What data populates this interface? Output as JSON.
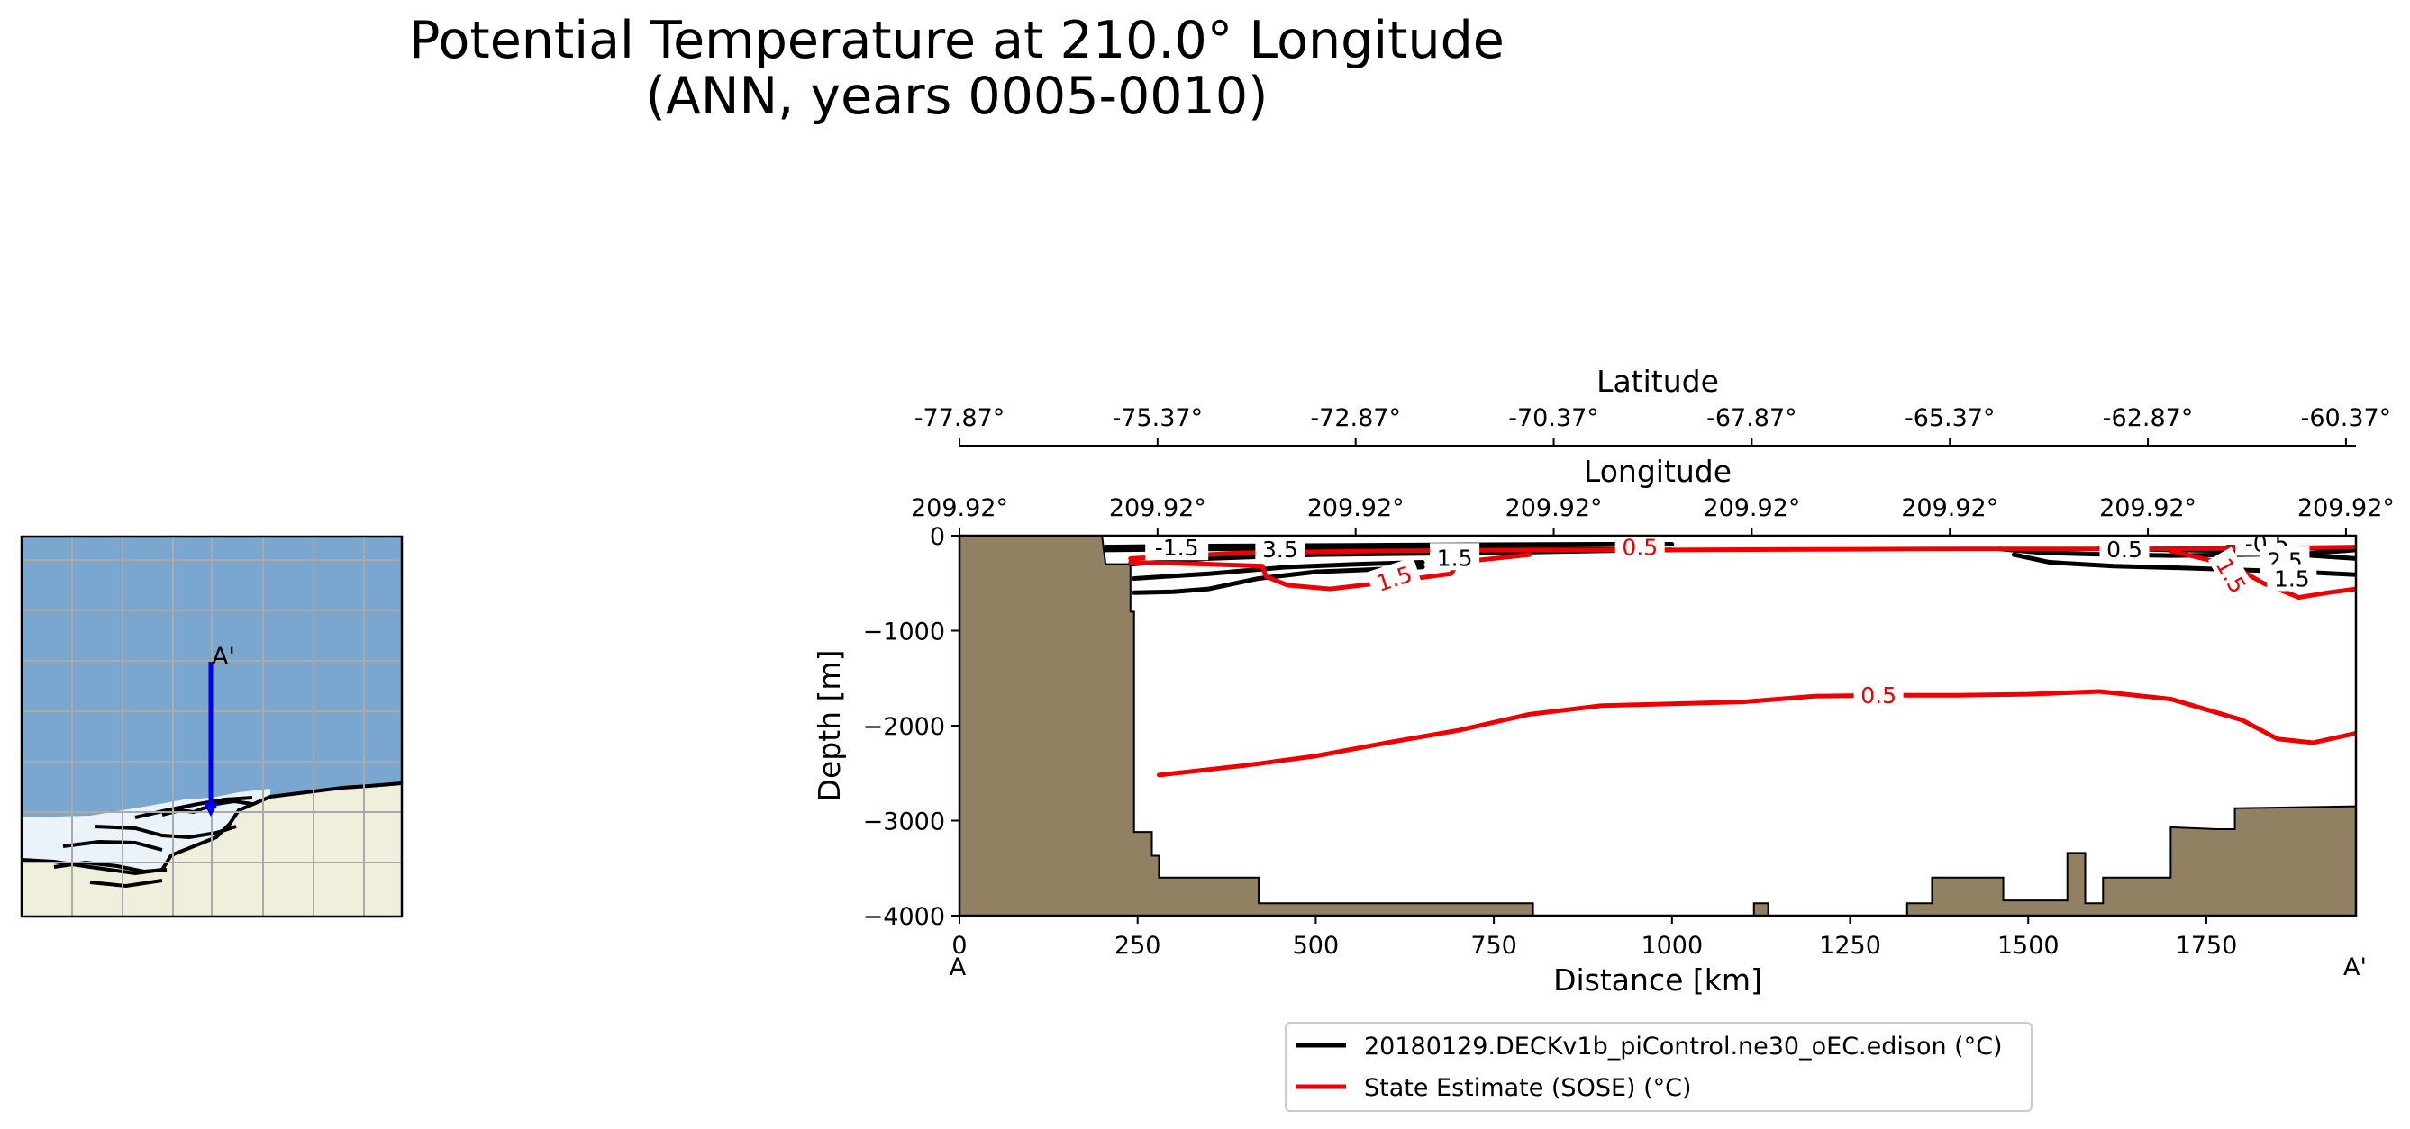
{
  "figure": {
    "title_line1": "Potential Temperature at 210.0° Longitude",
    "title_line2": "(ANN, years 0005-0010)"
  },
  "inset_map": {
    "end_label": "A'",
    "colors": {
      "ocean": "#79a7cf",
      "land": "#efefdb",
      "ice": "#eaf2fa",
      "grid": "#aaaaaa",
      "transect": "#0000ee"
    }
  },
  "chart_data": {
    "type": "contour",
    "xlabel": "Distance [km]",
    "ylabel": "Depth [m]",
    "xlim": [
      0,
      1960
    ],
    "ylim": [
      -4000,
      0
    ],
    "x_ticks": [
      0,
      250,
      500,
      750,
      1000,
      1250,
      1500,
      1750
    ],
    "y_ticks": [
      0,
      -1000,
      -2000,
      -3000,
      -4000
    ],
    "x_tick_labels": [
      "0",
      "250",
      "500",
      "750",
      "1000",
      "1250",
      "1500",
      "1750"
    ],
    "y_tick_labels": [
      "0",
      "−1000",
      "−2000",
      "−3000",
      "−4000"
    ],
    "start_label": "A",
    "end_label": "A'",
    "latitude_axis": {
      "label": "Latitude",
      "ticks": [
        "-77.87°",
        "-75.37°",
        "-72.87°",
        "-70.37°",
        "-67.87°",
        "-65.37°",
        "-62.87°",
        "-60.37°"
      ]
    },
    "longitude_axis": {
      "label": "Longitude",
      "ticks": [
        "209.92°",
        "209.92°",
        "209.92°",
        "209.92°",
        "209.92°",
        "209.92°",
        "209.92°",
        "209.92°"
      ]
    },
    "secondary_tick_positions_km": [
      0,
      278,
      556,
      834,
      1112,
      1390,
      1668,
      1946
    ],
    "colors": {
      "model": "#000000",
      "obs": "#ee0000",
      "bathymetry": "#918163"
    },
    "bathymetry": [
      [
        0,
        0
      ],
      [
        200,
        0
      ],
      [
        205,
        -300
      ],
      [
        240,
        -300
      ],
      [
        240,
        -800
      ],
      [
        245,
        -800
      ],
      [
        245,
        -3120
      ],
      [
        270,
        -3120
      ],
      [
        270,
        -3370
      ],
      [
        280,
        -3370
      ],
      [
        280,
        -3600
      ],
      [
        420,
        -3600
      ],
      [
        420,
        -3870
      ],
      [
        805,
        -3870
      ],
      [
        805,
        -4000
      ],
      [
        1115,
        -4000
      ],
      [
        1115,
        -3870
      ],
      [
        1135,
        -3870
      ],
      [
        1135,
        -4000
      ],
      [
        1330,
        -4000
      ],
      [
        1330,
        -3870
      ],
      [
        1365,
        -3870
      ],
      [
        1365,
        -3600
      ],
      [
        1465,
        -3600
      ],
      [
        1465,
        -3840
      ],
      [
        1555,
        -3840
      ],
      [
        1555,
        -3340
      ],
      [
        1580,
        -3340
      ],
      [
        1580,
        -3870
      ],
      [
        1605,
        -3870
      ],
      [
        1605,
        -3600
      ],
      [
        1700,
        -3600
      ],
      [
        1700,
        -3070
      ],
      [
        1765,
        -3090
      ],
      [
        1790,
        -3090
      ],
      [
        1790,
        -2870
      ],
      [
        1960,
        -2850
      ]
    ],
    "series": [
      {
        "name": "20180129.DECKv1b_piControl.ne30_oEC.edison (°C)",
        "color": "#000000",
        "contours": [
          {
            "level": "-1.5",
            "points": [
              [
                205,
                -120
              ],
              [
                320,
                -110
              ],
              [
                600,
                -100
              ],
              [
                900,
                -90
              ],
              [
                1000,
                -90
              ]
            ]
          },
          {
            "level": "0.5",
            "points": [
              [
                205,
                -150
              ],
              [
                350,
                -140
              ],
              [
                600,
                -130
              ],
              [
                900,
                -140
              ],
              [
                1000,
                -150
              ]
            ]
          },
          {
            "level": "1.5",
            "points": [
              [
                240,
                -300
              ],
              [
                350,
                -240
              ],
              [
                500,
                -200
              ],
              [
                620,
                -190
              ],
              [
                750,
                -180
              ],
              [
                900,
                -160
              ],
              [
                1000,
                -150
              ]
            ]
          },
          {
            "level": "2.5",
            "points": [
              [
                245,
                -450
              ],
              [
                350,
                -400
              ],
              [
                460,
                -330
              ],
              [
                560,
                -300
              ],
              [
                650,
                -280
              ]
            ]
          },
          {
            "level": "3.5",
            "points": [
              [
                245,
                -600
              ],
              [
                300,
                -590
              ],
              [
                350,
                -560
              ],
              [
                420,
                -450
              ],
              [
                500,
                -380
              ],
              [
                600,
                -350
              ],
              [
                650,
                -330
              ]
            ]
          },
          {
            "level": "0.5",
            "points": [
              [
                1460,
                -140
              ],
              [
                1520,
                -180
              ],
              [
                1620,
                -200
              ],
              [
                1700,
                -210
              ],
              [
                1800,
                -200
              ],
              [
                1890,
                -190
              ],
              [
                1960,
                -150
              ]
            ]
          },
          {
            "level": "1.5",
            "points": [
              [
                1480,
                -200
              ],
              [
                1530,
                -280
              ],
              [
                1620,
                -320
              ],
              [
                1720,
                -340
              ],
              [
                1800,
                -360
              ],
              [
                1880,
                -380
              ],
              [
                1960,
                -410
              ]
            ]
          },
          {
            "level": "2.5",
            "points": [
              [
                1600,
                -130
              ],
              [
                1700,
                -150
              ],
              [
                1790,
                -160
              ],
              [
                1880,
                -200
              ],
              [
                1960,
                -240
              ]
            ]
          },
          {
            "level": "3.5",
            "points": [
              [
                1780,
                -120
              ],
              [
                1880,
                -130
              ],
              [
                1960,
                -140
              ]
            ]
          }
        ]
      },
      {
        "name": "State Estimate (SOSE) (°C)",
        "color": "#ee0000",
        "contours": [
          {
            "level": "0.5",
            "points": [
              [
                240,
                -240
              ],
              [
                400,
                -180
              ],
              [
                600,
                -160
              ],
              [
                800,
                -150
              ],
              [
                1000,
                -150
              ],
              [
                1200,
                -145
              ],
              [
                1400,
                -140
              ],
              [
                1600,
                -140
              ],
              [
                1800,
                -135
              ],
              [
                1960,
                -120
              ]
            ]
          },
          {
            "level": "1.5",
            "points": [
              [
                240,
                -280
              ],
              [
                300,
                -290
              ],
              [
                350,
                -300
              ],
              [
                425,
                -320
              ],
              [
                430,
                -430
              ],
              [
                460,
                -520
              ],
              [
                520,
                -560
              ],
              [
                600,
                -490
              ],
              [
                690,
                -400
              ],
              [
                700,
                -280
              ],
              [
                800,
                -200
              ]
            ]
          },
          {
            "level": "1.5",
            "points": [
              [
                1700,
                -160
              ],
              [
                1750,
                -250
              ],
              [
                1790,
                -330
              ],
              [
                1830,
                -500
              ],
              [
                1880,
                -650
              ],
              [
                1920,
                -600
              ],
              [
                1960,
                -560
              ]
            ]
          },
          {
            "level": "0.5",
            "points": [
              [
                280,
                -2520
              ],
              [
                400,
                -2420
              ],
              [
                500,
                -2320
              ],
              [
                600,
                -2180
              ],
              [
                700,
                -2050
              ],
              [
                800,
                -1880
              ],
              [
                900,
                -1790
              ],
              [
                1000,
                -1770
              ],
              [
                1100,
                -1750
              ],
              [
                1200,
                -1690
              ],
              [
                1300,
                -1680
              ],
              [
                1400,
                -1680
              ],
              [
                1500,
                -1670
              ],
              [
                1600,
                -1640
              ],
              [
                1700,
                -1720
              ],
              [
                1800,
                -1940
              ],
              [
                1850,
                -2140
              ],
              [
                1900,
                -2180
              ],
              [
                1960,
                -2080
              ]
            ]
          }
        ]
      }
    ],
    "contour_labels": [
      {
        "text": "-1.5",
        "x": 305,
        "y": -125,
        "color": "#000000",
        "angle": 0
      },
      {
        "text": "3.5",
        "x": 450,
        "y": -140,
        "color": "#000000",
        "angle": 0
      },
      {
        "text": "1.5",
        "x": 695,
        "y": -230,
        "color": "#000000",
        "angle": 0
      },
      {
        "text": "1.5",
        "x": 610,
        "y": -450,
        "color": "#ee0000",
        "angle": -18
      },
      {
        "text": "0.5",
        "x": 955,
        "y": -120,
        "color": "#ee0000",
        "angle": 0
      },
      {
        "text": "0.5",
        "x": 1290,
        "y": -1680,
        "color": "#ee0000",
        "angle": 0
      },
      {
        "text": "0.5",
        "x": 1635,
        "y": -140,
        "color": "#000000",
        "angle": 0
      },
      {
        "text": "-0.5",
        "x": 1835,
        "y": -80,
        "color": "#000000",
        "angle": 0
      },
      {
        "text": "2.5",
        "x": 1860,
        "y": -260,
        "color": "#000000",
        "angle": 0
      },
      {
        "text": "1.5",
        "x": 1870,
        "y": -450,
        "color": "#000000",
        "angle": 0
      },
      {
        "text": "1.5",
        "x": 1785,
        "y": -420,
        "color": "#ee0000",
        "angle": 60
      }
    ],
    "legend_position": "lower center"
  }
}
